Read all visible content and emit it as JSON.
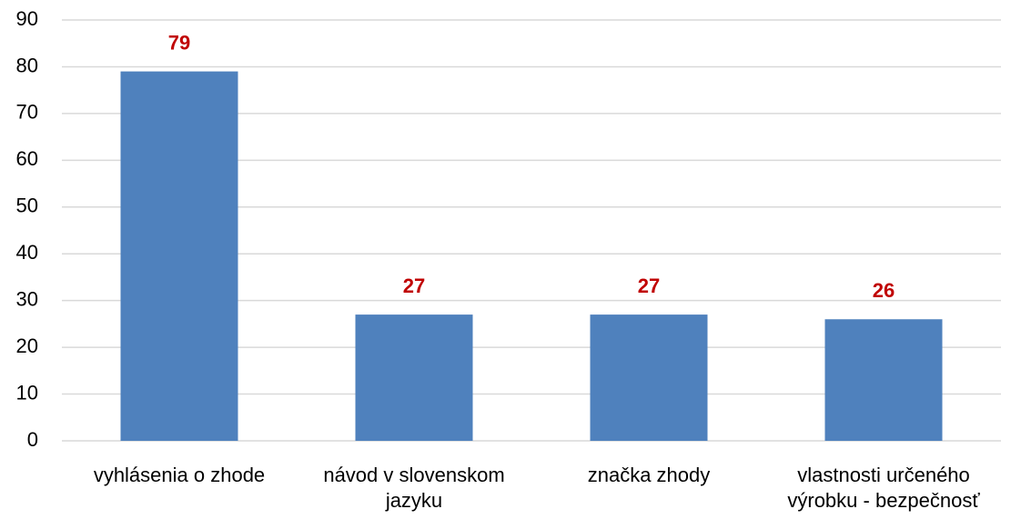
{
  "chart_data": {
    "type": "bar",
    "categories": [
      "vyhlásenia o zhode",
      "návod v slovenskom jazyku",
      "značka zhody",
      "vlastnosti určeného výrobku - bezpečnosť"
    ],
    "values": [
      79,
      27,
      27,
      26
    ],
    "color": "#4f81bd",
    "value_label_color": "#c00000",
    "ylim": [
      0,
      90
    ],
    "yticks": [
      0,
      10,
      20,
      30,
      40,
      50,
      60,
      70,
      80,
      90
    ],
    "grid": true
  }
}
